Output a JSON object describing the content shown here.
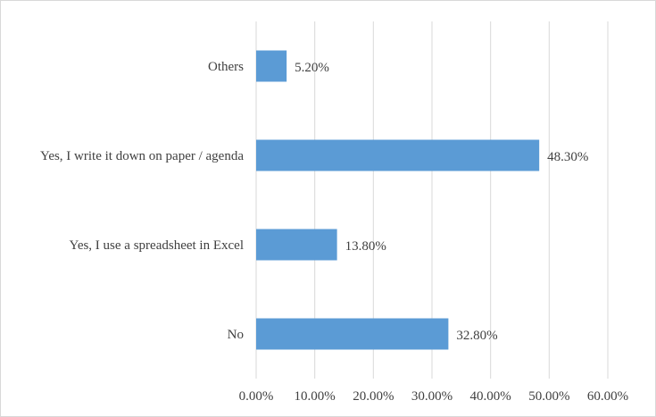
{
  "chart_data": {
    "type": "bar",
    "orientation": "horizontal",
    "title": "",
    "xlabel": "",
    "ylabel": "",
    "categories": [
      "Others",
      "Yes, I write it down on paper / agenda",
      "Yes, I use a spreadsheet in Excel",
      "No"
    ],
    "values": [
      5.2,
      48.3,
      13.8,
      32.8
    ],
    "value_labels": [
      "5.20%",
      "48.30%",
      "13.80%",
      "32.80%"
    ],
    "xlim": [
      0,
      60
    ],
    "x_ticks": [
      0,
      10,
      20,
      30,
      40,
      50,
      60
    ],
    "x_tick_labels": [
      "0.00%",
      "10.00%",
      "20.00%",
      "30.00%",
      "40.00%",
      "50.00%",
      "60.00%"
    ],
    "grid": true,
    "legend": "none",
    "bar_color": "#5b9bd5",
    "grid_color": "#d9d9d9"
  }
}
